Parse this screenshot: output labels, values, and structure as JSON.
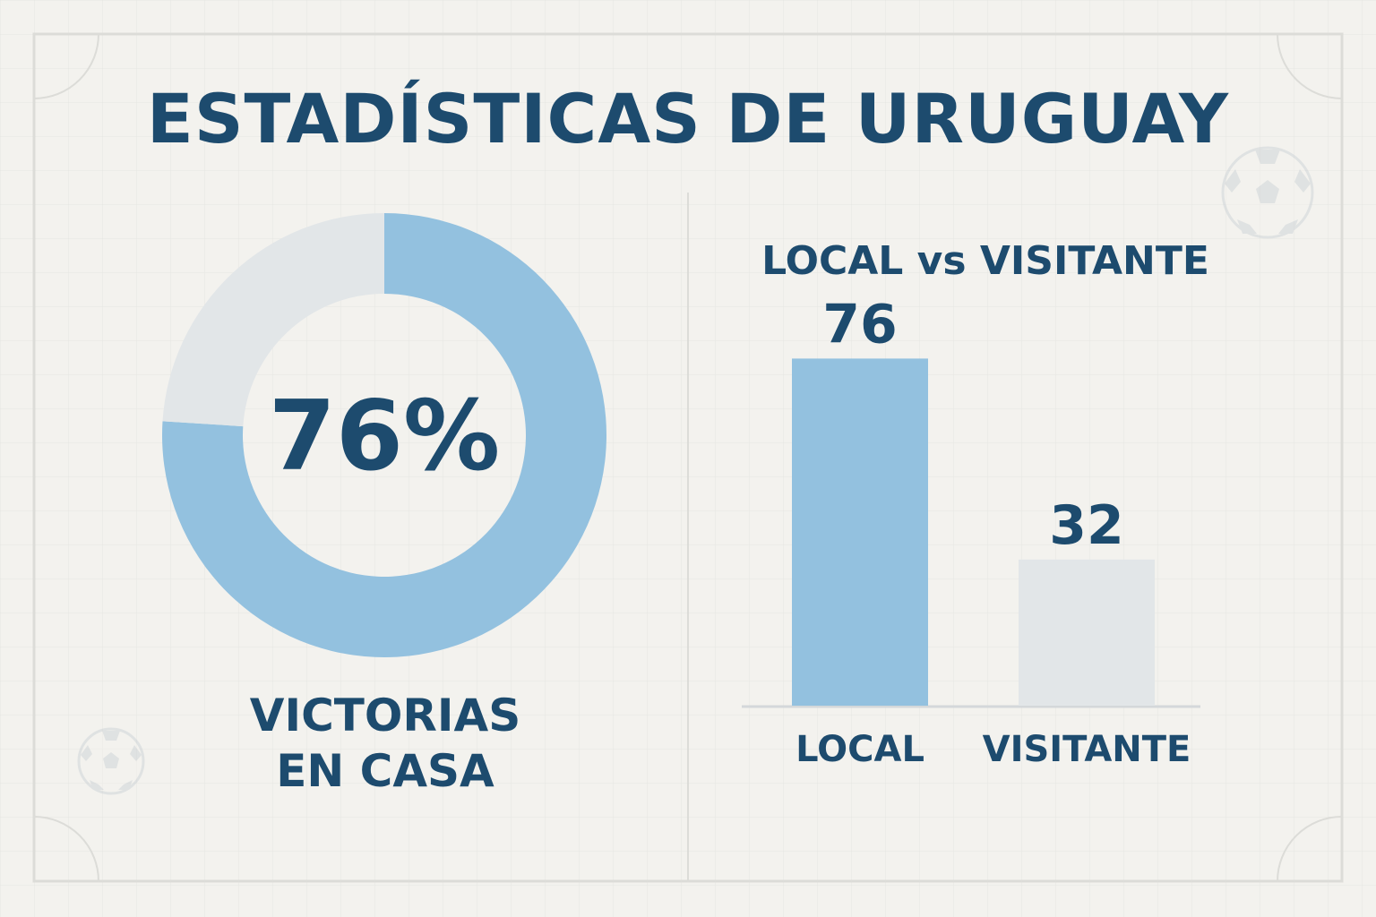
{
  "title": "ESTADÍSTICAS DE URUGUAY",
  "colors": {
    "text": "#1d4b6e",
    "primary": "#93c1df",
    "secondary": "#e2e6e8",
    "background": "#f3f2ee"
  },
  "chart_data": [
    {
      "type": "pie",
      "variant": "donut",
      "center_label": "76%",
      "caption": [
        "VICTORIAS",
        "EN CASA"
      ],
      "slices": [
        {
          "value": 76,
          "color": "#93c1df"
        },
        {
          "value": 24,
          "color": "#e2e6e8"
        }
      ]
    },
    {
      "type": "bar",
      "title": "LOCAL vs VISITANTE",
      "categories": [
        "LOCAL",
        "VISITANTE"
      ],
      "values": [
        76,
        32
      ],
      "colors": [
        "#93c1df",
        "#e2e6e8"
      ],
      "data_labels": [
        "76",
        "32"
      ],
      "ylim": [
        0,
        100
      ],
      "grid": false,
      "legend": false
    }
  ]
}
